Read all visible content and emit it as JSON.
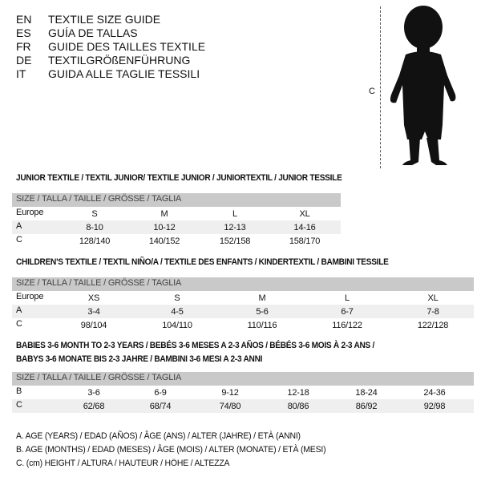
{
  "languages": [
    {
      "code": "EN",
      "title": "TEXTILE SIZE GUIDE"
    },
    {
      "code": "ES",
      "title": "GUÍA DE TALLAS"
    },
    {
      "code": "FR",
      "title": "GUIDE DES TAILLES TEXTILE"
    },
    {
      "code": "DE",
      "title": "TEXTILGRÖßENFÜHRUNG"
    },
    {
      "code": "IT",
      "title": "GUIDA ALLE TAGLIE TESSILI"
    }
  ],
  "figure": {
    "measure_label": "C",
    "icon": "child-silhouette"
  },
  "junior": {
    "title": "JUNIOR TEXTILE / TEXTIL JUNIOR/ TEXTILE JUNIOR / JUNIORTEXTIL / JUNIOR TESSILE",
    "header": "SIZE / TALLA / TAILLE / GRÖSSE / TAGLIA",
    "rows": [
      {
        "label": "Europe",
        "cells": [
          "S",
          "M",
          "L",
          "XL"
        ]
      },
      {
        "label": "A",
        "cells": [
          "8-10",
          "10-12",
          "12-13",
          "14-16"
        ]
      },
      {
        "label": "C",
        "cells": [
          "128/140",
          "140/152",
          "152/158",
          "158/170"
        ]
      }
    ]
  },
  "children": {
    "title": "CHILDREN'S TEXTILE / TEXTIL NIÑO/A / TEXTILE DES ENFANTS / KINDERTEXTIL / BAMBINI TESSILE",
    "header": "SIZE / TALLA / TAILLE / GRÖSSE / TAGLIA",
    "rows": [
      {
        "label": "Europe",
        "cells": [
          "XS",
          "S",
          "M",
          "L",
          "XL"
        ]
      },
      {
        "label": "A",
        "cells": [
          "3-4",
          "4-5",
          "5-6",
          "6-7",
          "7-8"
        ]
      },
      {
        "label": "C",
        "cells": [
          "98/104",
          "104/110",
          "110/116",
          "116/122",
          "122/128"
        ]
      }
    ]
  },
  "babies": {
    "title_line1": "BABIES 3-6 MONTH TO 2-3 YEARS / BEBÉS 3-6 MESES A 2-3 AÑOS / BÉBÉS 3-6 MOIS À 2-3 ANS /",
    "title_line2": "BABYS 3-6 MONATE BIS 2-3 JAHRE / BAMBINI 3-6 MESI A 2-3 ANNI",
    "header": "SIZE / TALLA / TAILLE / GRÖSSE / TAGLIA",
    "rows": [
      {
        "label": "B",
        "cells": [
          "3-6",
          "6-9",
          "9-12",
          "12-18",
          "18-24",
          "24-36"
        ]
      },
      {
        "label": "C",
        "cells": [
          "62/68",
          "68/74",
          "74/80",
          "80/86",
          "86/92",
          "92/98"
        ]
      }
    ]
  },
  "legend": [
    "A. AGE (YEARS) / EDAD (AÑOS) / ÂGE (ANS) / ALTER (JAHRE) / ETÀ (ANNI)",
    "B. AGE (MONTHS) / EDAD (MESES) / ÂGE (MOIS) / ALTER (MONATE) / ETÀ (MESI)",
    "C. (cm) HEIGHT / ALTURA / HAUTEUR / HÖHE / ALTEZZA"
  ]
}
